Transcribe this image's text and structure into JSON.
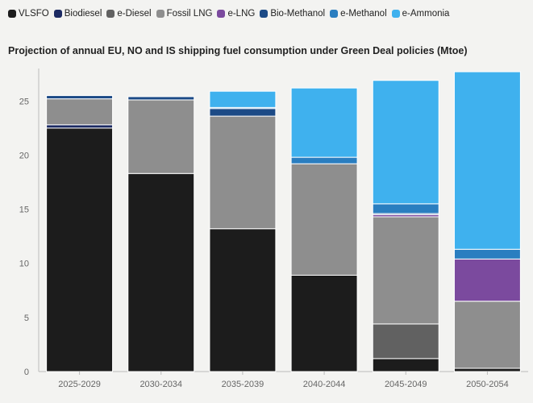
{
  "colors": {
    "VLSFO": "#1c1c1c",
    "Biodiesel": "#1c2a63",
    "e-Diesel": "#616161",
    "Fossil LNG": "#8e8e8e",
    "e-LNG": "#7b4a9e",
    "Bio-Methanol": "#1c4a86",
    "e-Methanol": "#2a7ec0",
    "e-Ammonia": "#3fb1ee"
  },
  "chart_data": {
    "type": "bar",
    "stacked": true,
    "title": "Projection of annual EU, NO and IS shipping fuel consumption under Green Deal policies (Mtoe)",
    "xlabel": "",
    "ylabel": "",
    "ylim": [
      0,
      28
    ],
    "yticks": [
      0,
      5,
      10,
      15,
      20,
      25
    ],
    "grid": false,
    "legend_position": "top",
    "categories": [
      "2025-2029",
      "2030-2034",
      "2035-2039",
      "2040-2044",
      "2045-2049",
      "2050-2054"
    ],
    "series": [
      {
        "name": "VLSFO",
        "values": [
          22.5,
          18.3,
          13.2,
          8.9,
          1.2,
          0.3
        ]
      },
      {
        "name": "Biodiesel",
        "values": [
          0.3,
          0.0,
          0.0,
          0.0,
          0.0,
          0.0
        ]
      },
      {
        "name": "e-Diesel",
        "values": [
          0.0,
          0.0,
          0.0,
          0.0,
          3.2,
          0.0
        ]
      },
      {
        "name": "Fossil LNG",
        "values": [
          2.4,
          6.8,
          10.4,
          10.3,
          9.9,
          6.2
        ]
      },
      {
        "name": "e-LNG",
        "values": [
          0.0,
          0.0,
          0.0,
          0.0,
          0.2,
          3.9
        ]
      },
      {
        "name": "Bio-Methanol",
        "values": [
          0.3,
          0.3,
          0.7,
          0.0,
          0.1,
          0.0
        ]
      },
      {
        "name": "e-Methanol",
        "values": [
          0.0,
          0.0,
          0.1,
          0.6,
          0.9,
          0.9
        ]
      },
      {
        "name": "e-Ammonia",
        "values": [
          0.0,
          0.0,
          1.5,
          6.4,
          11.4,
          16.4
        ]
      }
    ]
  }
}
